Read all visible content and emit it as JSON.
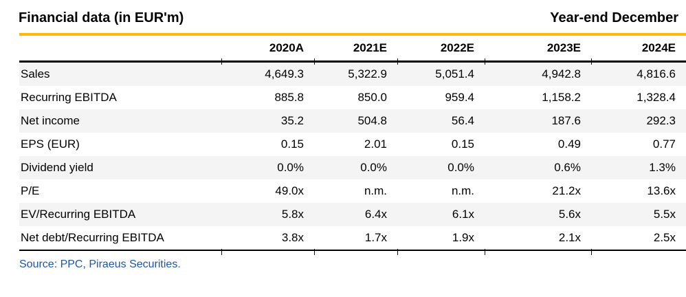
{
  "header": {
    "title": "Financial data (in EUR'm)",
    "year_end_label": "Year-end December"
  },
  "table": {
    "columns": [
      "2020A",
      "2021E",
      "2022E",
      "2023E",
      "2024E"
    ],
    "rows": [
      {
        "label": "Sales",
        "values": [
          "4,649.3",
          "5,322.9",
          "5,051.4",
          "4,942.8",
          "4,816.6"
        ]
      },
      {
        "label": "Recurring EBITDA",
        "values": [
          "885.8",
          "850.0",
          "959.4",
          "1,158.2",
          "1,328.4"
        ]
      },
      {
        "label": "Net income",
        "values": [
          "35.2",
          "504.8",
          "56.4",
          "187.6",
          "292.3"
        ]
      },
      {
        "label": "EPS (EUR)",
        "values": [
          "0.15",
          "2.01",
          "0.15",
          "0.49",
          "0.77"
        ]
      },
      {
        "label": "Dividend yield",
        "values": [
          "0.0%",
          "0.0%",
          "0.0%",
          "0.6%",
          "1.3%"
        ]
      },
      {
        "label": "P/E",
        "values": [
          "49.0x",
          "n.m.",
          "n.m.",
          "21.2x",
          "13.6x"
        ]
      },
      {
        "label": "EV/Recurring EBITDA",
        "values": [
          "5.8x",
          "6.4x",
          "6.1x",
          "5.6x",
          "5.5x"
        ]
      },
      {
        "label": "Net debt/Recurring EBITDA",
        "values": [
          "3.8x",
          "1.7x",
          "1.9x",
          "2.1x",
          "2.5x"
        ]
      }
    ]
  },
  "footer": {
    "source": "Source: PPC, Piraeus Securities."
  },
  "colors": {
    "accent_gold": "#FBB80D",
    "rule_black": "#000000",
    "stripe_gray": "#F4F4F4",
    "source_blue": "#1F55A5"
  }
}
